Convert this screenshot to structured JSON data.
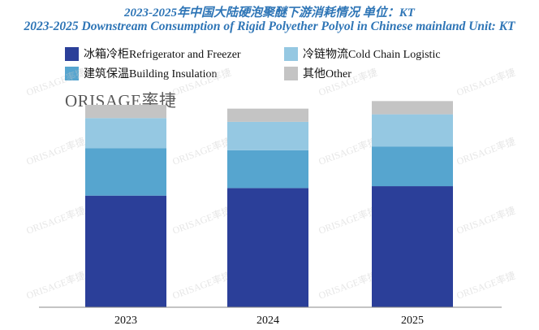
{
  "title_zh": "2023-2025年中国大陆硬泡聚醚下游消耗情况  单位：KT",
  "title_en": "2023-2025 Downstream Consumption of Rigid Polyether Polyol in Chinese mainland Unit: KT",
  "logo": {
    "brand": "ORISAGE",
    "cn": "率捷"
  },
  "watermark": "ORISAGE率捷",
  "colors": {
    "refrigerator": "#2b3f99",
    "building": "#56a5cf",
    "cold_chain": "#95c8e2",
    "other": "#c4c4c4",
    "title": "#2e75b6"
  },
  "chart_data": {
    "type": "bar",
    "stacked": true,
    "categories": [
      "2023",
      "2024",
      "2025"
    ],
    "series": [
      {
        "name": "冰箱冷柜Refrigerator and Freezer",
        "key": "refrigerator",
        "values": [
          59,
          63,
          64
        ]
      },
      {
        "name": "建筑保温Building Insulation",
        "key": "building",
        "values": [
          25,
          20,
          21
        ]
      },
      {
        "name": "冷链物流Cold Chain Logistic",
        "key": "cold_chain",
        "values": [
          16,
          15,
          17
        ]
      },
      {
        "name": "其他Other",
        "key": "other",
        "values": [
          7,
          7,
          7
        ]
      }
    ],
    "ylim": [
      0,
      110
    ],
    "xlabel": "",
    "ylabel": "",
    "grid": false,
    "legend_position": "top"
  }
}
